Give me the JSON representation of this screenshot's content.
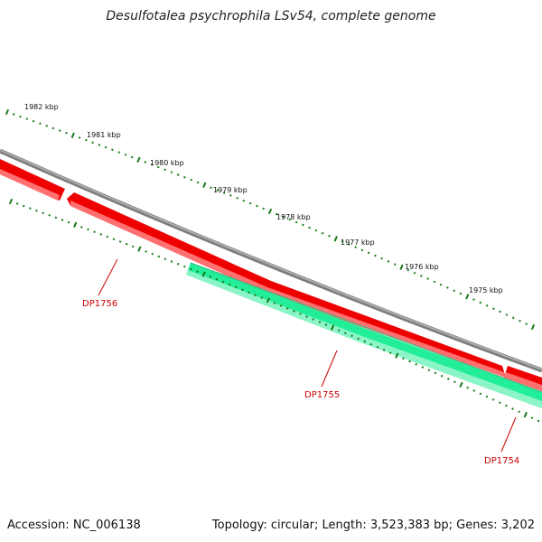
{
  "title": "Desulfotalea psychrophila LSv54, complete genome",
  "footer": {
    "accession": "Accession: NC_006138",
    "summary": "Topology: circular; Length: 3,523,383 bp; Genes: 3,202"
  },
  "scale_labels": [
    "1982 kbp",
    "1981 kbp",
    "1980 kbp",
    "1979 kbp",
    "1978 kbp",
    "1977 kbp",
    "1976 kbp",
    "1975 kbp"
  ],
  "genes": [
    {
      "name": "DP1756",
      "strand": "forward"
    },
    {
      "name": "DP1755",
      "strand": "reverse"
    },
    {
      "name": "DP1754",
      "strand": "forward"
    }
  ],
  "colors": {
    "backbone": "#888888",
    "forward_gene": "#ee0000",
    "reverse_gene": "#22ee99",
    "ticks": "#1a7a1a",
    "gene_label": "#cc0000"
  }
}
